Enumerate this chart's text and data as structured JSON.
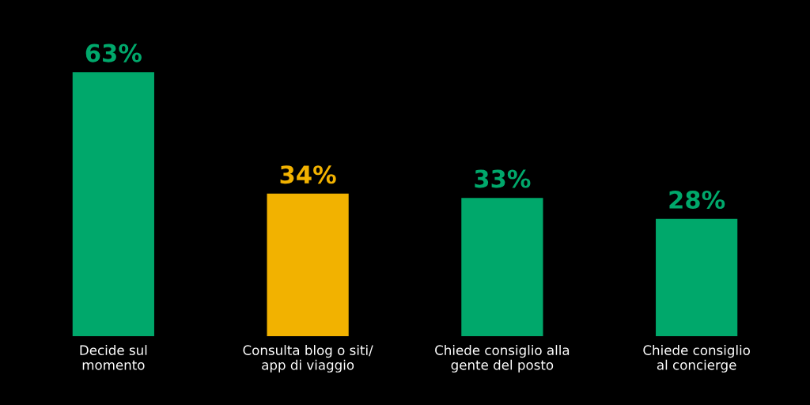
{
  "chart_data": {
    "type": "bar",
    "categories": [
      "Decide sul\nmomento",
      "Consulta blog o siti/\napp di viaggio",
      "Chiede consiglio alla\ngente del posto",
      "Chiede consiglio\nal concierge"
    ],
    "values": [
      63,
      34,
      33,
      28
    ],
    "colors": [
      "#00a86b",
      "#f2b200",
      "#00a86b",
      "#00a86b"
    ],
    "value_labels": [
      "63%",
      "34%",
      "33%",
      "28%"
    ],
    "grid": false
  }
}
